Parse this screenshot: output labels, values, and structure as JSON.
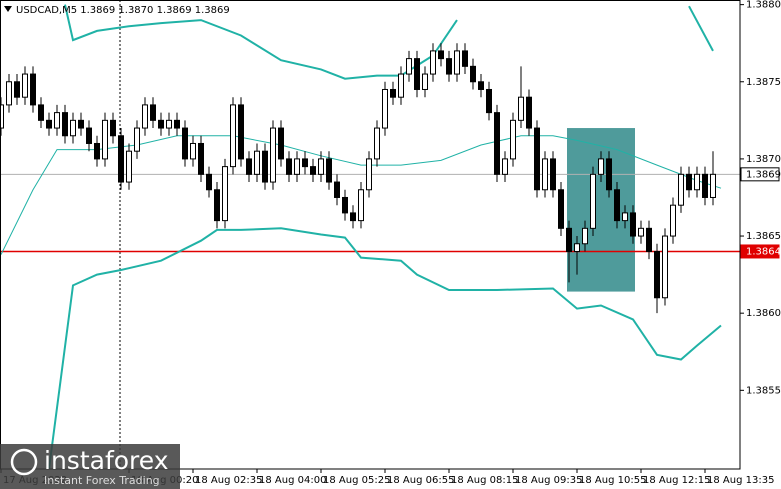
{
  "chart_data": {
    "type": "candlestick",
    "title": "USDCAD,M5  1.3869 1.3870 1.3869 1.3869",
    "xlim": [
      -0.125,
      92.375
    ],
    "ylim": [
      1.38499,
      1.38803
    ],
    "yticks": [
      {
        "value": 1.388,
        "label": "1.3880"
      },
      1.3875,
      {
        "value": 1.387,
        "label": "1.3870"
      },
      1.3865,
      {
        "value": 1.386,
        "label": "1.3860"
      },
      1.3855
    ],
    "xticks": [
      {
        "value": 0,
        "label": "17 Aug 2022"
      },
      {
        "value": 16,
        "label": "18 Aug 00:20"
      },
      {
        "value": 24,
        "label": "18 Aug 02:35"
      },
      {
        "value": 32,
        "label": "18 Aug 04:00"
      },
      {
        "value": 40,
        "label": "18 Aug 05:25"
      },
      {
        "value": 48,
        "label": "18 Aug 06:55"
      },
      {
        "value": 56,
        "label": "18 Aug 08:15"
      },
      {
        "value": 64,
        "label": "18 Aug 09:35"
      },
      {
        "value": 72,
        "label": "18 Aug 10:55"
      },
      {
        "value": 80,
        "label": "18 Aug 12:15"
      },
      {
        "value": 88,
        "label": "18 Aug 13:35"
      }
    ],
    "open": [
      1.3872,
      1.38735,
      1.3875,
      1.3874,
      1.38755,
      1.38735,
      1.38725,
      1.3872,
      1.3873,
      1.38715,
      1.38725,
      1.3872,
      1.3871,
      1.387,
      1.38725,
      1.38715,
      1.38685,
      1.38705,
      1.3872,
      1.38735,
      1.38725,
      1.3872,
      1.38725,
      1.3872,
      1.387,
      1.3871,
      1.3869,
      1.3868,
      1.3866,
      1.38695,
      1.38735,
      1.387,
      1.3869,
      1.38705,
      1.38685,
      1.3872,
      1.387,
      1.3869,
      1.387,
      1.38695,
      1.3869,
      1.387,
      1.38685,
      1.38675,
      1.38665,
      1.3866,
      1.3868,
      1.387,
      1.3872,
      1.38745,
      1.3874,
      1.38755,
      1.38765,
      1.38745,
      1.38755,
      1.3877,
      1.38765,
      1.38755,
      1.3877,
      1.3876,
      1.3875,
      1.38745,
      1.3873,
      1.3869,
      1.387,
      1.38725,
      1.3874,
      1.3872,
      1.3868,
      1.387,
      1.3868,
      1.38655,
      1.3864,
      1.38645,
      1.38655,
      1.3869,
      1.387,
      1.3868,
      1.3866,
      1.38665,
      1.3865,
      1.38655,
      1.3864,
      1.3861,
      1.3865,
      1.3867,
      1.3869,
      1.3868,
      1.3869,
      1.38675
    ],
    "high": [
      1.3874,
      1.38755,
      1.38755,
      1.3876,
      1.3876,
      1.3874,
      1.3873,
      1.38735,
      1.38735,
      1.3873,
      1.3873,
      1.38725,
      1.38715,
      1.3873,
      1.3873,
      1.3872,
      1.3871,
      1.38725,
      1.3874,
      1.3874,
      1.3873,
      1.3873,
      1.3873,
      1.38725,
      1.38715,
      1.38715,
      1.38695,
      1.38685,
      1.387,
      1.3874,
      1.3874,
      1.38705,
      1.3871,
      1.3871,
      1.38725,
      1.38725,
      1.38705,
      1.38705,
      1.38705,
      1.387,
      1.38705,
      1.38705,
      1.3869,
      1.3868,
      1.3867,
      1.38685,
      1.38705,
      1.38725,
      1.3875,
      1.3875,
      1.3876,
      1.3877,
      1.3877,
      1.3876,
      1.38775,
      1.38775,
      1.3877,
      1.38775,
      1.38775,
      1.38765,
      1.38755,
      1.3875,
      1.38735,
      1.38705,
      1.3873,
      1.3876,
      1.38745,
      1.38725,
      1.38705,
      1.38705,
      1.38685,
      1.3866,
      1.3865,
      1.3866,
      1.38695,
      1.38705,
      1.38705,
      1.38685,
      1.3867,
      1.3867,
      1.3866,
      1.3866,
      1.38645,
      1.38655,
      1.38675,
      1.38695,
      1.38695,
      1.38695,
      1.38695,
      1.38705
    ],
    "low": [
      1.38715,
      1.3873,
      1.38735,
      1.38735,
      1.3873,
      1.3872,
      1.38715,
      1.38715,
      1.3871,
      1.3871,
      1.38715,
      1.38705,
      1.38695,
      1.38695,
      1.3871,
      1.3868,
      1.3868,
      1.387,
      1.38715,
      1.3872,
      1.38715,
      1.38715,
      1.38715,
      1.38695,
      1.38695,
      1.38685,
      1.38675,
      1.38655,
      1.38655,
      1.3869,
      1.38695,
      1.38685,
      1.38685,
      1.3868,
      1.3868,
      1.38695,
      1.38685,
      1.38685,
      1.3869,
      1.38685,
      1.38685,
      1.3868,
      1.3867,
      1.3866,
      1.38655,
      1.38655,
      1.38675,
      1.38695,
      1.38715,
      1.38735,
      1.38735,
      1.3875,
      1.3874,
      1.3874,
      1.3875,
      1.3876,
      1.3875,
      1.3875,
      1.38755,
      1.38745,
      1.3874,
      1.38725,
      1.38685,
      1.38685,
      1.38695,
      1.3872,
      1.38715,
      1.38675,
      1.38675,
      1.38675,
      1.3865,
      1.3862,
      1.38625,
      1.3864,
      1.3865,
      1.38685,
      1.38675,
      1.38655,
      1.38655,
      1.38645,
      1.38645,
      1.38635,
      1.386,
      1.38605,
      1.38645,
      1.38665,
      1.38675,
      1.38675,
      1.3867,
      1.3867
    ],
    "close": [
      1.38735,
      1.3875,
      1.3874,
      1.38755,
      1.38735,
      1.38725,
      1.3872,
      1.3873,
      1.38715,
      1.38725,
      1.3872,
      1.3871,
      1.387,
      1.38725,
      1.38715,
      1.38685,
      1.38705,
      1.3872,
      1.38735,
      1.38725,
      1.3872,
      1.38725,
      1.3872,
      1.387,
      1.3871,
      1.3869,
      1.3868,
      1.3866,
      1.38695,
      1.38735,
      1.387,
      1.3869,
      1.38705,
      1.38685,
      1.3872,
      1.387,
      1.3869,
      1.387,
      1.38695,
      1.3869,
      1.387,
      1.38685,
      1.38675,
      1.38665,
      1.3866,
      1.3868,
      1.387,
      1.3872,
      1.38745,
      1.3874,
      1.38755,
      1.38765,
      1.38745,
      1.38755,
      1.3877,
      1.38765,
      1.38755,
      1.3877,
      1.3876,
      1.3875,
      1.38745,
      1.3873,
      1.3869,
      1.387,
      1.38725,
      1.3874,
      1.3872,
      1.3868,
      1.387,
      1.3868,
      1.38655,
      1.3864,
      1.38645,
      1.38655,
      1.3869,
      1.387,
      1.3868,
      1.3866,
      1.38665,
      1.3865,
      1.38655,
      1.3864,
      1.3861,
      1.3865,
      1.3867,
      1.3869,
      1.3868,
      1.3869,
      1.38675,
      1.3869
    ],
    "bands": {
      "color": "#20b2a6",
      "upper": {
        "x": [
          8,
          9,
          12,
          16,
          20,
          25,
          30,
          35,
          40,
          43,
          47,
          50,
          54,
          57,
          58,
          86,
          89
        ],
        "values": [
          1.388,
          1.38777,
          1.38783,
          1.38786,
          1.38788,
          1.3879,
          1.3878,
          1.38764,
          1.38758,
          1.38752,
          1.38754,
          1.38754,
          1.38767,
          1.3879,
          null,
          1.38799,
          1.3877
        ]
      },
      "middle": {
        "x": [
          0,
          4,
          7,
          12,
          17,
          22,
          29,
          35,
          40,
          45,
          50,
          55,
          60,
          65,
          69,
          72,
          77,
          82,
          87,
          90
        ],
        "values": [
          1.38638,
          1.3868,
          1.38706,
          1.38706,
          1.38709,
          1.38715,
          1.38715,
          1.38709,
          1.38702,
          1.38696,
          1.38696,
          1.38699,
          1.38709,
          1.38715,
          1.38715,
          1.38712,
          1.38706,
          1.38696,
          1.38686,
          1.38681
        ]
      },
      "lower": {
        "x": [
          6,
          9,
          12,
          15,
          20,
          25,
          27,
          30,
          35,
          40,
          43,
          45,
          50,
          52,
          56,
          62,
          69,
          72,
          75,
          79,
          82,
          85,
          87,
          90
        ],
        "values": [
          1.38499,
          1.38618,
          1.38625,
          1.38628,
          1.38634,
          1.38647,
          1.38654,
          1.38654,
          1.38655,
          1.38651,
          1.38649,
          1.38636,
          1.38634,
          1.38625,
          1.38615,
          1.38615,
          1.38616,
          1.38603,
          1.38605,
          1.38596,
          1.38573,
          1.3857,
          1.38579,
          1.38592
        ]
      }
    },
    "hlines": [
      {
        "value": 1.3864,
        "color": "#e00000"
      },
      {
        "value": 1.3869,
        "color": "#b0b0b0"
      }
    ],
    "vlines": [
      {
        "x": 14.875
      }
    ],
    "highlight": {
      "x": [
        70.75,
        79.25
      ],
      "y": [
        1.38614,
        1.3872
      ],
      "color": "#4f9b9b"
    }
  },
  "logo": {
    "name": "instaforex",
    "tagline": "Instant Forex Trading"
  }
}
